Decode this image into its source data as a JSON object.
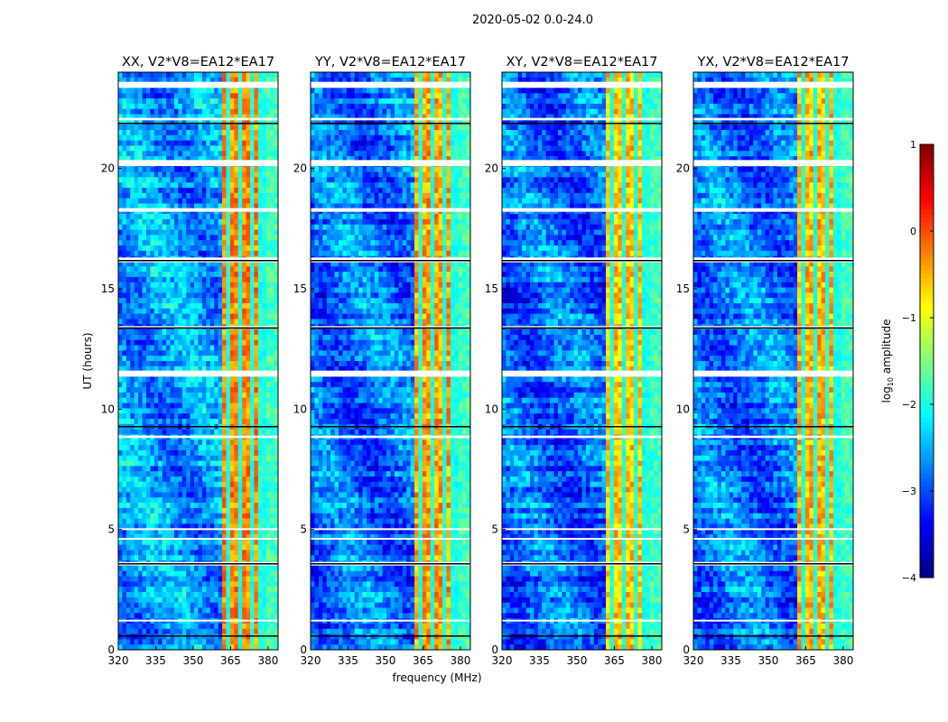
{
  "chart_data": {
    "type": "heatmap",
    "title": "2020-05-02 0.0-24.0",
    "xlabel": "frequency (MHz)",
    "ylabel": "UT (hours)",
    "xlim": [
      320,
      384
    ],
    "ylim": [
      0,
      24
    ],
    "xticks": [
      320,
      335,
      350,
      365,
      380
    ],
    "yticks": [
      0,
      5,
      10,
      15,
      20
    ],
    "panels": [
      {
        "title": "XX, V2*V8=EA12*EA17",
        "background_log_amp": -2.6,
        "rfi_log_amp": -0.3
      },
      {
        "title": "YY, V2*V8=EA12*EA17",
        "background_log_amp": -2.8,
        "rfi_log_amp": -0.4
      },
      {
        "title": "XY, V2*V8=EA12*EA17",
        "background_log_amp": -2.9,
        "rfi_log_amp": -0.6
      },
      {
        "title": "YX, V2*V8=EA12*EA17",
        "background_log_amp": -2.8,
        "rfi_log_amp": -0.5
      }
    ],
    "rfi_band_mhz": [
      361,
      380
    ],
    "rfi_gaps_mhz": [
      364,
      368.5,
      373,
      377.5
    ],
    "edge_band_mhz": [
      380,
      384
    ],
    "flagged_hours": [
      [
        23.35,
        23.6
      ],
      [
        20.1,
        20.35
      ],
      [
        18.2,
        18.35
      ],
      [
        16.1,
        16.3
      ],
      [
        11.35,
        11.6
      ],
      [
        3.5,
        3.65
      ],
      [
        13.35,
        13.45
      ],
      [
        22.0,
        22.1
      ],
      [
        8.8,
        8.9
      ],
      [
        5.0,
        5.05
      ],
      [
        4.6,
        4.65
      ],
      [
        1.2,
        1.25
      ]
    ],
    "dark_hours": [
      21.9,
      13.4,
      9.3,
      0.6,
      3.6,
      16.2
    ],
    "colorbar": {
      "label": "log10 amplitude",
      "label_base": "log",
      "label_sub": "10",
      "label_rest": " amplitude",
      "range": [
        -4,
        1
      ],
      "ticks": [
        "1",
        "0",
        "−1",
        "−2",
        "−3",
        "−4"
      ],
      "colormap": "jet"
    }
  }
}
